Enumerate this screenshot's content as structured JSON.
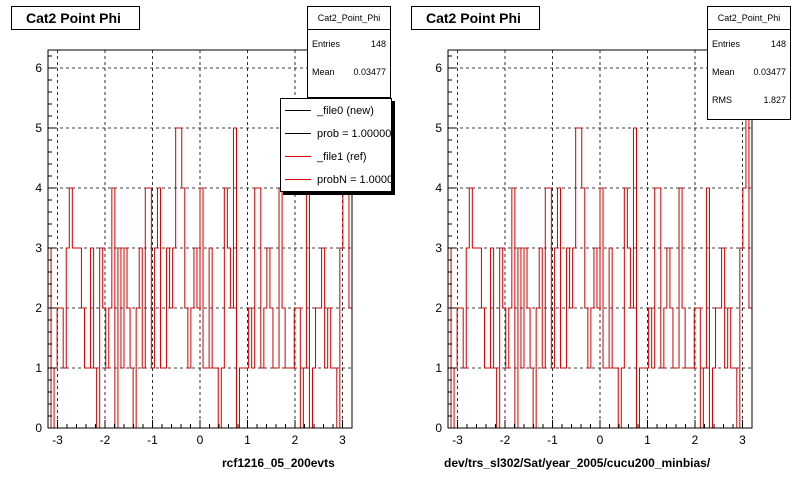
{
  "colors": {
    "histogram": "#d00000",
    "axis": "#000000",
    "grid": "#000000",
    "background": "#ffffff"
  },
  "panels": [
    {
      "title": "Cat2 Point Phi",
      "stats": {
        "name": "Cat2_Point_Phi",
        "rows": [
          {
            "label": "Entries",
            "value": "148"
          },
          {
            "label": "Mean",
            "value": "0.03477"
          }
        ]
      },
      "legend": [
        {
          "label": "_file0 (new)",
          "color": "#000000"
        },
        {
          "label": "prob = 1.000000",
          "color": "#000000"
        },
        {
          "label": "_file1 (ref)",
          "color": "#d00000"
        },
        {
          "label": "probN = 1.000000",
          "color": "#d00000"
        }
      ],
      "bottom_label": "rcf1216_05_200evts"
    },
    {
      "title": "Cat2 Point Phi",
      "stats": {
        "name": "Cat2_Point_Phi",
        "rows": [
          {
            "label": "Entries",
            "value": "148"
          },
          {
            "label": "Mean",
            "value": "0.03477"
          },
          {
            "label": "RMS",
            "value": "1.827"
          }
        ]
      },
      "legend": [],
      "bottom_label": "dev/trs_sl302/Sat/year_2005/cucu200_minbias/"
    }
  ],
  "chart_data": [
    {
      "type": "histogram",
      "title": "Cat2 Point Phi",
      "xlim": [
        -3.2,
        3.2
      ],
      "ylim": [
        0,
        6.3
      ],
      "x_ticks": [
        -3,
        -2,
        -1,
        0,
        1,
        2,
        3
      ],
      "y_ticks": [
        0,
        1,
        2,
        3,
        4,
        5,
        6
      ],
      "grid": true,
      "bins": 100,
      "series": [
        {
          "name": "_file1 (ref)",
          "values": [
            3,
            0,
            1,
            2,
            2,
            1,
            3,
            4,
            3,
            3,
            3,
            2,
            1,
            1,
            3,
            1,
            0,
            3,
            2,
            1,
            2,
            4,
            0,
            3,
            1,
            3,
            2,
            1,
            0,
            2,
            3,
            1,
            4,
            4,
            1,
            3,
            4,
            1,
            1,
            3,
            2,
            3,
            5,
            5,
            4,
            2,
            1,
            2,
            3,
            2,
            4,
            1,
            1,
            3,
            1,
            1,
            0,
            1,
            4,
            3,
            2,
            5,
            0,
            1,
            1,
            1,
            2,
            1,
            4,
            4,
            1,
            2,
            3,
            2,
            1,
            1,
            4,
            2,
            1,
            1,
            1,
            2,
            2,
            0,
            1,
            4,
            0,
            1,
            2,
            2,
            3,
            1,
            2,
            1,
            1,
            0,
            3,
            4,
            6,
            2
          ]
        }
      ]
    },
    {
      "type": "histogram",
      "title": "Cat2 Point Phi",
      "xlim": [
        -3.2,
        3.2
      ],
      "ylim": [
        0,
        6.3
      ],
      "x_ticks": [
        -3,
        -2,
        -1,
        0,
        1,
        2,
        3
      ],
      "y_ticks": [
        0,
        1,
        2,
        3,
        4,
        5,
        6
      ],
      "grid": true,
      "bins": 100,
      "series": [
        {
          "name": "",
          "values": [
            3,
            0,
            1,
            2,
            2,
            1,
            3,
            4,
            3,
            3,
            3,
            2,
            1,
            1,
            3,
            1,
            0,
            3,
            2,
            1,
            2,
            4,
            0,
            3,
            1,
            3,
            2,
            1,
            0,
            2,
            3,
            1,
            4,
            4,
            1,
            3,
            4,
            1,
            1,
            3,
            2,
            3,
            5,
            5,
            4,
            2,
            1,
            2,
            3,
            2,
            4,
            1,
            1,
            3,
            1,
            1,
            0,
            1,
            4,
            3,
            2,
            5,
            0,
            1,
            1,
            1,
            2,
            1,
            4,
            4,
            1,
            2,
            3,
            2,
            1,
            1,
            4,
            2,
            1,
            1,
            1,
            2,
            2,
            0,
            1,
            4,
            0,
            1,
            2,
            2,
            3,
            1,
            2,
            1,
            1,
            0,
            3,
            4,
            6,
            2
          ]
        }
      ]
    }
  ]
}
